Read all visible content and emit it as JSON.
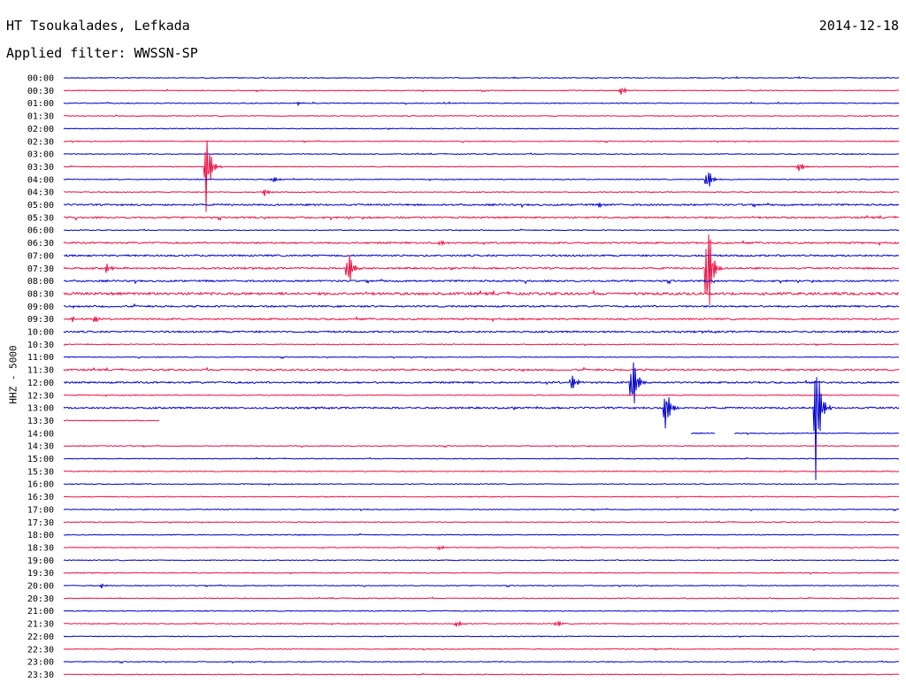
{
  "header": {
    "station": "HT Tsoukalades, Lefkada",
    "date": "2014-12-18",
    "filter": "Applied filter: WWSSN-SP"
  },
  "channel_label": "HHZ - 5000",
  "colors": {
    "even": "#0000cc",
    "odd": "#ee1144"
  },
  "chart_data": {
    "type": "line",
    "title": "",
    "ylabel": "HHZ - 5000",
    "xlabel": "",
    "time_labels": [
      "00:00",
      "00:30",
      "01:00",
      "01:30",
      "02:00",
      "02:30",
      "03:00",
      "03:30",
      "04:00",
      "04:30",
      "05:00",
      "05:30",
      "06:00",
      "06:30",
      "07:00",
      "07:30",
      "08:00",
      "08:30",
      "09:00",
      "09:30",
      "10:00",
      "10:30",
      "11:00",
      "11:30",
      "12:00",
      "12:30",
      "13:00",
      "13:30",
      "14:00",
      "14:30",
      "15:00",
      "15:30",
      "16:00",
      "16:30",
      "17:00",
      "17:30",
      "18:00",
      "18:30",
      "19:00",
      "19:30",
      "20:00",
      "20:30",
      "21:00",
      "21:30",
      "22:00",
      "22:30",
      "23:00",
      "23:30"
    ],
    "trace_minutes": 30,
    "noise_level": [
      1,
      1,
      1,
      1,
      1,
      1,
      1,
      1,
      1,
      1,
      2,
      2,
      1,
      2,
      2,
      2,
      2,
      3,
      2,
      2,
      2,
      1,
      1,
      2,
      2,
      1,
      2,
      1,
      1,
      1,
      1,
      1,
      1,
      1,
      1,
      1,
      1,
      1,
      1,
      1,
      1,
      1,
      1,
      1,
      1,
      1,
      1,
      1
    ],
    "gaps": [
      {
        "row": 27,
        "from": 0.115,
        "to": 1.0
      },
      {
        "row": 28,
        "from": 0.0,
        "to": 0.75
      },
      {
        "row": 28,
        "from": 0.78,
        "to": 0.802
      }
    ],
    "events": [
      {
        "row": 1,
        "pos": 0.667,
        "amp": 6
      },
      {
        "row": 2,
        "pos": 0.28,
        "amp": 2
      },
      {
        "row": 7,
        "pos": 0.17,
        "amp": 60
      },
      {
        "row": 7,
        "pos": 0.88,
        "amp": 8
      },
      {
        "row": 8,
        "pos": 0.25,
        "amp": 5
      },
      {
        "row": 8,
        "pos": 0.77,
        "amp": 18
      },
      {
        "row": 9,
        "pos": 0.24,
        "amp": 6
      },
      {
        "row": 10,
        "pos": 0.64,
        "amp": 3
      },
      {
        "row": 13,
        "pos": 0.45,
        "amp": 6
      },
      {
        "row": 15,
        "pos": 0.05,
        "amp": 7
      },
      {
        "row": 15,
        "pos": 0.34,
        "amp": 30
      },
      {
        "row": 15,
        "pos": 0.77,
        "amp": 95
      },
      {
        "row": 19,
        "pos": 0.01,
        "amp": 4
      },
      {
        "row": 19,
        "pos": 0.035,
        "amp": 6
      },
      {
        "row": 24,
        "pos": 0.607,
        "amp": 15
      },
      {
        "row": 24,
        "pos": 0.68,
        "amp": 50
      },
      {
        "row": 26,
        "pos": 0.72,
        "amp": 35
      },
      {
        "row": 26,
        "pos": 0.9,
        "amp": 105
      },
      {
        "row": 37,
        "pos": 0.45,
        "amp": 4
      },
      {
        "row": 40,
        "pos": 0.045,
        "amp": 3
      },
      {
        "row": 43,
        "pos": 0.47,
        "amp": 5
      },
      {
        "row": 43,
        "pos": 0.59,
        "amp": 5
      }
    ]
  }
}
